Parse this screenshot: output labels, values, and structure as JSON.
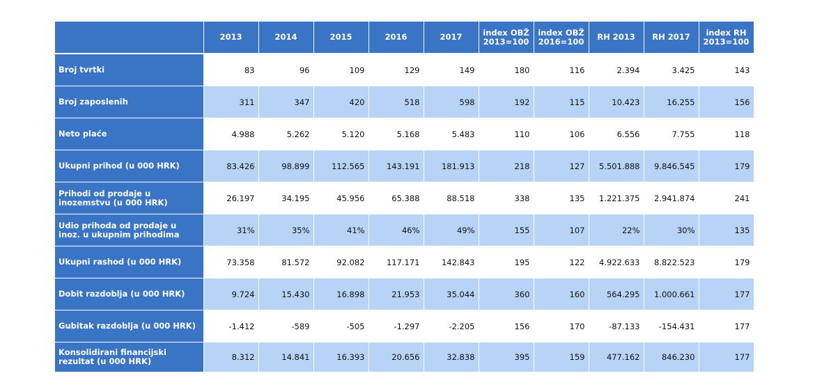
{
  "table": {
    "headers": [
      "",
      "2013",
      "2014",
      "2015",
      "2016",
      "2017",
      "index OBŽ\n2013=100",
      "index OBŽ\n2016=100",
      "RH 2013",
      "RH 2017",
      "index RH\n2013=100"
    ],
    "rows": [
      {
        "label": "Broj tvrtki",
        "values": [
          "83",
          "96",
          "109",
          "129",
          "149",
          "180",
          "116",
          "2.394",
          "3.425",
          "143"
        ]
      },
      {
        "label": "Broj zaposlenih",
        "values": [
          "311",
          "347",
          "420",
          "518",
          "598",
          "192",
          "115",
          "10.423",
          "16.255",
          "156"
        ]
      },
      {
        "label": "Neto plaće",
        "values": [
          "4.988",
          "5.262",
          "5.120",
          "5.168",
          "5.483",
          "110",
          "106",
          "6.556",
          "7.755",
          "118"
        ]
      },
      {
        "label": "Ukupni prihod (u 000 HRK)",
        "values": [
          "83.426",
          "98.899",
          "112.565",
          "143.191",
          "181.913",
          "218",
          "127",
          "5.501.888",
          "9.846.545",
          "179"
        ]
      },
      {
        "label": "Prihodi od prodaje u inozemstvu (u 000 HRK)",
        "values": [
          "26.197",
          "34.195",
          "45.956",
          "65.388",
          "88.518",
          "338",
          "135",
          "1.221.375",
          "2.941.874",
          "241"
        ]
      },
      {
        "label": "Udio prihoda od prodaje u inoz. u ukupnim prihodima",
        "values": [
          "31%",
          "35%",
          "41%",
          "46%",
          "49%",
          "155",
          "107",
          "22%",
          "30%",
          "135"
        ]
      },
      {
        "label": "Ukupni rashod (u 000 HRK)",
        "values": [
          "73.358",
          "81.572",
          "92.082",
          "117.171",
          "142.843",
          "195",
          "122",
          "4.922.633",
          "8.822.523",
          "179"
        ]
      },
      {
        "label": "Dobit razdoblja (u 000 HRK)",
        "values": [
          "9.724",
          "15.430",
          "16.898",
          "21.953",
          "35.044",
          "360",
          "160",
          "564.295",
          "1.000.661",
          "177"
        ]
      },
      {
        "label": "Gubitak razdoblja (u 000 HRK)",
        "values": [
          "-1.412",
          "-589",
          "-505",
          "-1.297",
          "-2.205",
          "156",
          "170",
          "-87.133",
          "-154.431",
          "177"
        ]
      },
      {
        "label": "Konsolidirani financijski rezultat (u 000 HRK)",
        "values": [
          "8.312",
          "14.841",
          "16.393",
          "20.656",
          "32.838",
          "395",
          "159",
          "477.162",
          "846.230",
          "177"
        ]
      }
    ]
  },
  "colors": {
    "header": "#3a74c4",
    "band": "#b7d3f5",
    "white": "#ffffff"
  }
}
